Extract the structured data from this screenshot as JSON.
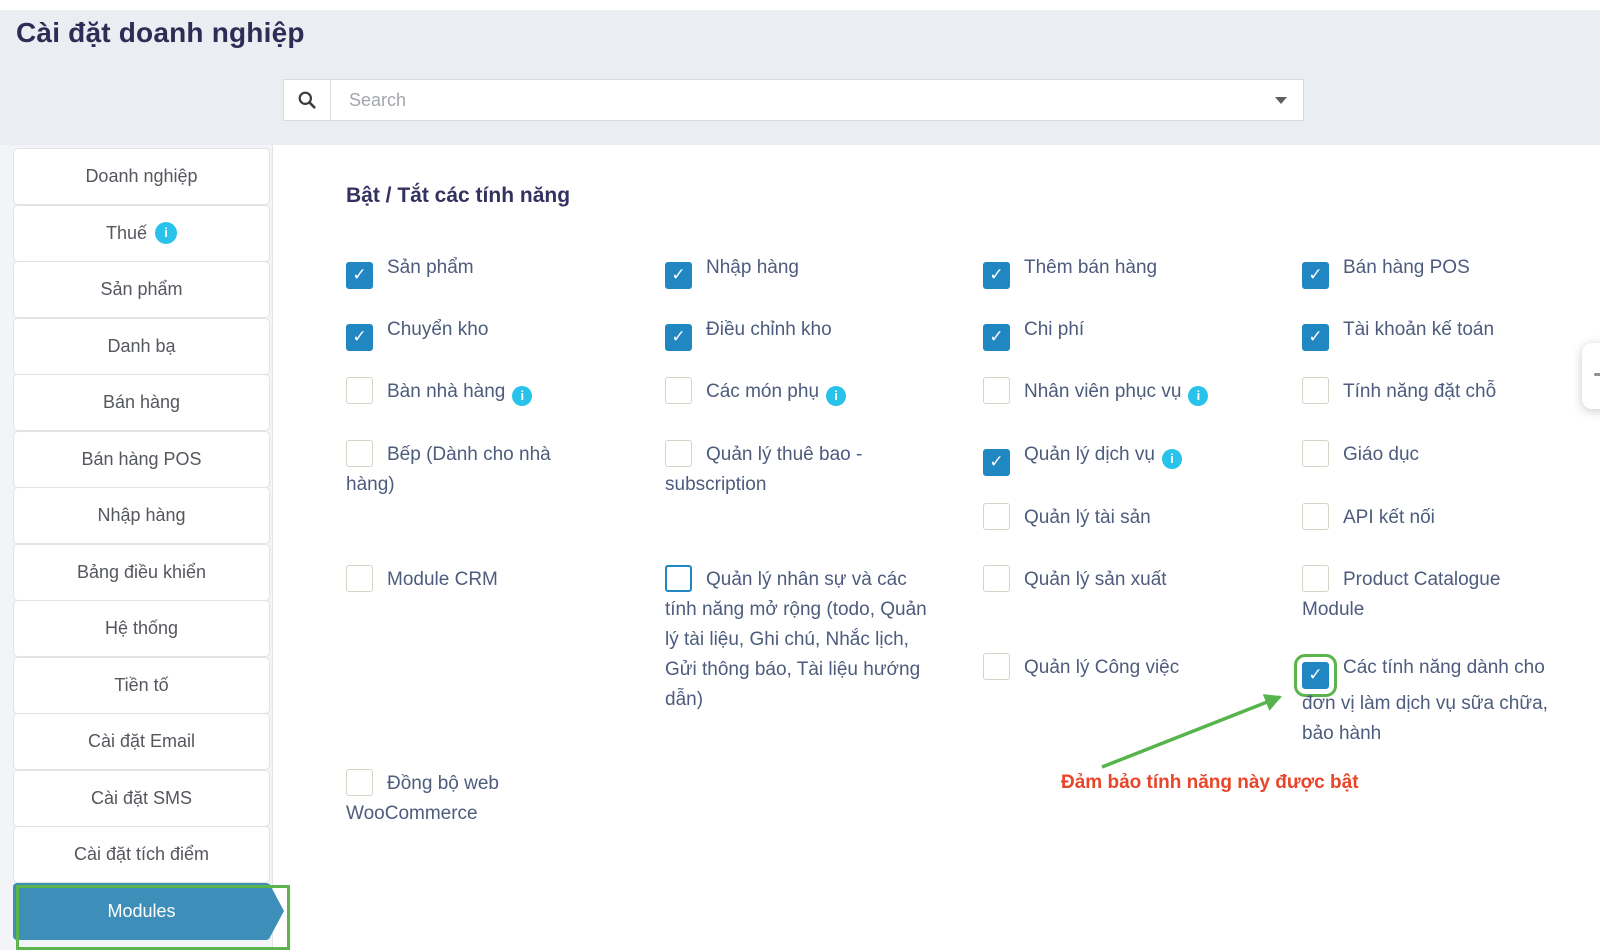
{
  "page": {
    "title": "Cài đặt doanh nghiệp"
  },
  "search": {
    "placeholder": "Search"
  },
  "colors": {
    "accent_blue": "#3d8eb9",
    "checkbox_blue": "#2187c2",
    "annotation_green": "#5cb44c",
    "annotation_red": "#e8462a",
    "info_cyan": "#29c2ea",
    "label_slate": "#4d5c7d",
    "title_navy": "#2e2c55"
  },
  "sidebar": {
    "items": [
      {
        "label": "Doanh nghiệp"
      },
      {
        "label": "Thuế",
        "info": true
      },
      {
        "label": "Sản phẩm"
      },
      {
        "label": "Danh bạ"
      },
      {
        "label": "Bán hàng"
      },
      {
        "label": "Bán hàng POS"
      },
      {
        "label": "Nhập hàng"
      },
      {
        "label": "Bảng điều khiển"
      },
      {
        "label": "Hệ thống"
      },
      {
        "label": "Tiền tố"
      },
      {
        "label": "Cài đặt Email"
      },
      {
        "label": "Cài đặt SMS"
      },
      {
        "label": "Cài đặt tích điểm"
      },
      {
        "label": "Modules",
        "active": true,
        "highlighted": true
      }
    ]
  },
  "main": {
    "heading": "Bật / Tắt các tính năng",
    "features": [
      {
        "label": "Sản phẩm",
        "checked": true
      },
      {
        "label": "Nhập hàng",
        "checked": true
      },
      {
        "label": "Thêm bán hàng",
        "checked": true
      },
      {
        "label": "Bán hàng POS",
        "checked": true
      },
      {
        "label": "Chuyển kho",
        "checked": true
      },
      {
        "label": "Điều chỉnh kho",
        "checked": true
      },
      {
        "label": "Chi phí",
        "checked": true
      },
      {
        "label": "Tài khoản kế toán",
        "checked": true
      },
      {
        "label": "Bàn nhà hàng",
        "checked": false,
        "info": true
      },
      {
        "label": "Các món phụ",
        "checked": false,
        "info": true
      },
      {
        "label": "Nhân viên phục vụ",
        "checked": false,
        "info": true
      },
      {
        "label": "Tính năng đặt chỗ",
        "checked": false
      },
      {
        "label": "Bếp (Dành cho nhà hàng)",
        "checked": false
      },
      {
        "label": "Quản lý thuê bao - subscription",
        "checked": false
      },
      {
        "label": "Quản lý dịch vụ",
        "checked": true,
        "info": true
      },
      {
        "label": "Giáo dục",
        "checked": false
      },
      {
        "label": "Quản lý tài sản",
        "checked": false
      },
      {
        "label": "API kết nối",
        "checked": false
      },
      {
        "label": "Module CRM",
        "checked": false
      },
      {
        "label": "Quản lý nhân sự và các tính năng mở rộng (todo, Quản lý tài liệu, Ghi chú, Nhắc lịch, Gửi thông báo, Tài liệu hướng dẫn)",
        "checked": false,
        "variant": "focus"
      },
      {
        "label": "Quản lý sản xuất",
        "checked": false
      },
      {
        "label": "Product Catalogue Module",
        "checked": false
      },
      {
        "label": "Quản lý Công việc",
        "checked": false
      },
      {
        "label": "Các tính năng dành cho đơn vị làm dịch vụ sữa chữa, bảo hành",
        "checked": true,
        "variant": "highlight"
      },
      {
        "label": "Đồng bộ web WooCommerce",
        "checked": false
      }
    ]
  },
  "annotation": {
    "note": "Đảm bảo tính năng này được bật"
  }
}
